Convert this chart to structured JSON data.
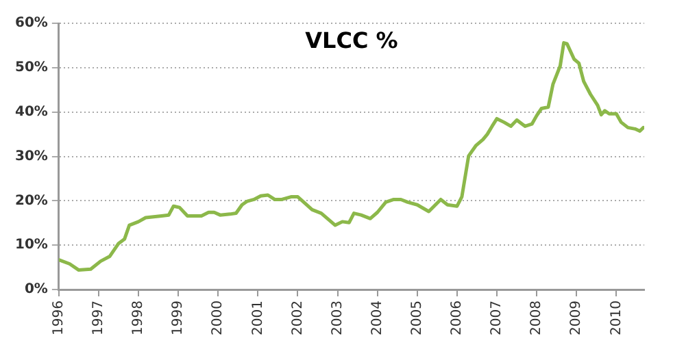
{
  "chart_data": {
    "type": "line",
    "title": "VLCC %",
    "series": [
      {
        "color": "#8cb84a",
        "x": [
          1996.0,
          1996.27,
          1996.5,
          1996.8,
          1997.05,
          1997.28,
          1997.5,
          1997.65,
          1997.77,
          1998.0,
          1998.18,
          1998.58,
          1998.76,
          1998.88,
          1999.03,
          1999.23,
          1999.58,
          1999.76,
          1999.9,
          2000.05,
          2000.3,
          2000.45,
          2000.6,
          2000.73,
          2000.9,
          2001.07,
          2001.25,
          2001.42,
          2001.6,
          2001.83,
          2002.0,
          2002.15,
          2002.36,
          2002.59,
          2002.94,
          2003.12,
          2003.29,
          2003.41,
          2003.59,
          2003.82,
          2004.0,
          2004.21,
          2004.41,
          2004.59,
          2004.76,
          2005.0,
          2005.29,
          2005.59,
          2005.76,
          2006.0,
          2006.12,
          2006.29,
          2006.47,
          2006.65,
          2006.76,
          2006.88,
          2007.0,
          2007.18,
          2007.35,
          2007.5,
          2007.71,
          2007.88,
          2008.0,
          2008.12,
          2008.29,
          2008.41,
          2008.59,
          2008.68,
          2008.76,
          2008.94,
          2009.06,
          2009.18,
          2009.35,
          2009.53,
          2009.62,
          2009.71,
          2009.82,
          2010.0,
          2010.12,
          2010.29,
          2010.47,
          2010.59,
          2010.68
        ],
        "values": [
          6.7,
          5.8,
          4.4,
          4.6,
          6.4,
          7.5,
          10.4,
          11.4,
          14.5,
          15.3,
          16.2,
          16.6,
          16.8,
          18.8,
          18.5,
          16.6,
          16.6,
          17.4,
          17.4,
          16.8,
          17,
          17.2,
          19.1,
          19.9,
          20.3,
          21.1,
          21.3,
          20.3,
          20.3,
          20.9,
          20.9,
          19.7,
          18,
          17.2,
          14.5,
          15.3,
          15.1,
          17.2,
          16.8,
          16,
          17.4,
          19.7,
          20.3,
          20.3,
          19.7,
          19.1,
          17.6,
          20.3,
          19.1,
          18.8,
          20.9,
          30.1,
          32.4,
          33.8,
          35,
          36.8,
          38.5,
          37.7,
          36.8,
          38.2,
          36.8,
          37.3,
          39.2,
          40.8,
          41.1,
          46.3,
          50.4,
          55.6,
          55.4,
          51.9,
          51,
          46.9,
          44,
          41.5,
          39.4,
          40.3,
          39.6,
          39.6,
          37.7,
          36.5,
          36.2,
          35.7,
          36.5
        ]
      }
    ],
    "xlim": [
      1996,
      2010.7
    ],
    "xticks": [
      1996,
      1997,
      1998,
      1999,
      2000,
      2001,
      2002,
      2003,
      2004,
      2005,
      2006,
      2007,
      2008,
      2009,
      2010
    ],
    "ylim": [
      0,
      60
    ],
    "yticks": [
      {
        "value": 0,
        "label": "0%"
      },
      {
        "value": 10,
        "label": "10%"
      },
      {
        "value": 20,
        "label": "20%"
      },
      {
        "value": 30,
        "label": "30%"
      },
      {
        "value": 40,
        "label": "40%"
      },
      {
        "value": 50,
        "label": "50%"
      },
      {
        "value": 60,
        "label": "60%"
      }
    ],
    "grid": "y",
    "legend": false,
    "marker": "none",
    "line_style": "solid"
  }
}
